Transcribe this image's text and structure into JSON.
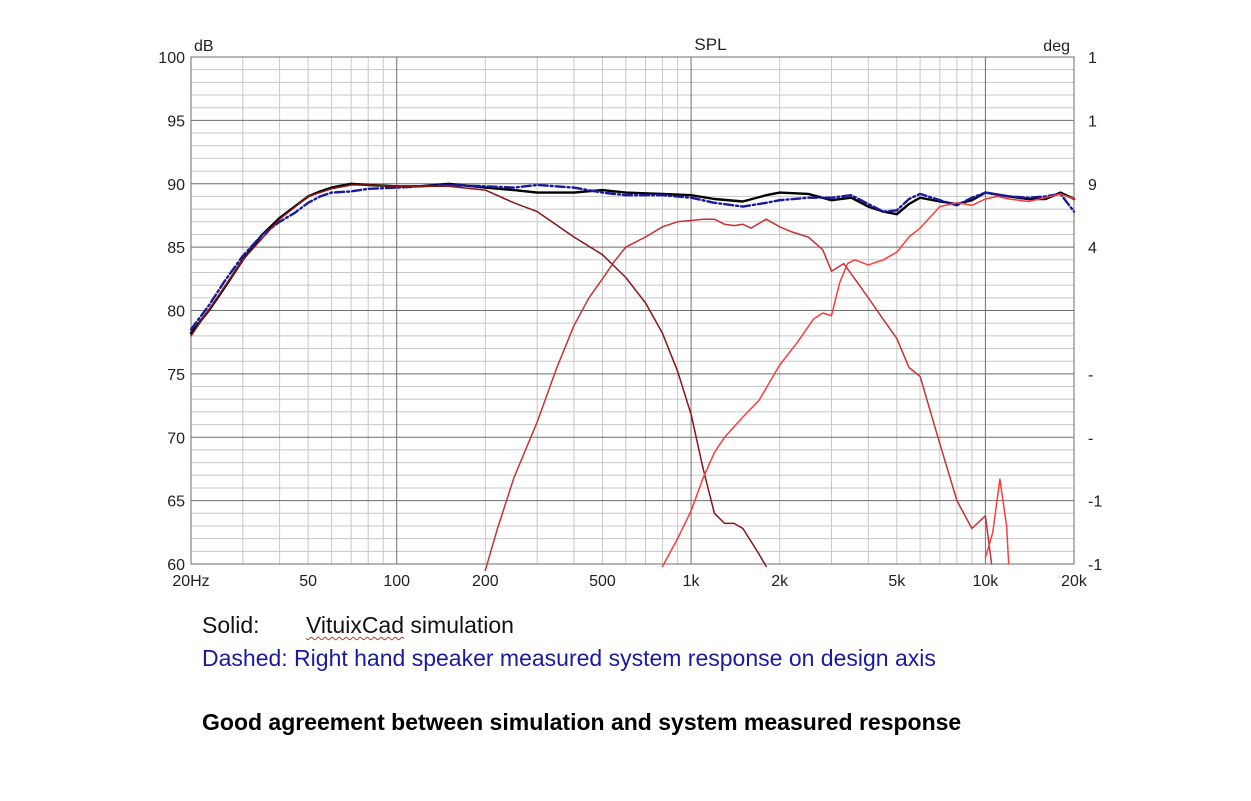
{
  "chart_data": {
    "type": "line",
    "title": "SPL",
    "ylabel_left": "dB",
    "ylabel_right": "deg",
    "x_scale": "log",
    "xlim": [
      20,
      20000
    ],
    "ylim": [
      60,
      100
    ],
    "grid": true,
    "x_ticks": [
      {
        "value": 20,
        "label": "20Hz"
      },
      {
        "value": 50,
        "label": "50"
      },
      {
        "value": 100,
        "label": "100"
      },
      {
        "value": 200,
        "label": "200"
      },
      {
        "value": 500,
        "label": "500"
      },
      {
        "value": 1000,
        "label": "1k"
      },
      {
        "value": 2000,
        "label": "2k"
      },
      {
        "value": 5000,
        "label": "5k"
      },
      {
        "value": 10000,
        "label": "10k"
      },
      {
        "value": 20000,
        "label": "20k"
      }
    ],
    "y_ticks": [
      100,
      95,
      90,
      85,
      80,
      75,
      70,
      65,
      60
    ],
    "right_tick_labels": [
      "1",
      "1",
      "9",
      "4",
      "",
      "-",
      "-",
      "-1",
      "-1"
    ],
    "series": [
      {
        "style": "solid",
        "color": "#000000",
        "width": 2.4,
        "x": [
          20,
          23,
          26,
          30,
          35,
          40,
          45,
          50,
          55,
          60,
          70,
          80,
          100,
          120,
          150,
          200,
          250,
          300,
          400,
          500,
          600,
          800,
          1000,
          1200,
          1500,
          1800,
          2000,
          2500,
          3000,
          3500,
          4000,
          4500,
          5000,
          5500,
          6000,
          7000,
          8000,
          9000,
          10000,
          12000,
          14000,
          16000,
          18000,
          20000
        ],
        "y": [
          78.2,
          80.0,
          81.8,
          84.0,
          86.0,
          87.3,
          88.2,
          89.0,
          89.4,
          89.7,
          90.0,
          89.9,
          89.8,
          89.8,
          90.0,
          89.7,
          89.5,
          89.3,
          89.3,
          89.5,
          89.3,
          89.2,
          89.1,
          88.8,
          88.6,
          89.1,
          89.3,
          89.2,
          88.7,
          88.9,
          88.2,
          87.8,
          87.6,
          88.4,
          88.9,
          88.6,
          88.4,
          88.7,
          89.3,
          89.0,
          88.8,
          88.8,
          89.3,
          88.8
        ]
      },
      {
        "style": "dashed",
        "color": "#1a1aa0",
        "width": 2.4,
        "x": [
          20,
          23,
          26,
          30,
          35,
          40,
          45,
          50,
          55,
          60,
          70,
          80,
          100,
          120,
          150,
          200,
          250,
          300,
          400,
          500,
          600,
          800,
          1000,
          1200,
          1500,
          1800,
          2000,
          2500,
          3000,
          3500,
          4000,
          4500,
          5000,
          5500,
          6000,
          7000,
          8000,
          9000,
          10000,
          12000,
          14000,
          16000,
          18000,
          20000
        ],
        "y": [
          78.5,
          80.4,
          82.3,
          84.3,
          86.0,
          87.0,
          87.7,
          88.5,
          89.0,
          89.3,
          89.4,
          89.6,
          89.7,
          89.8,
          89.9,
          89.8,
          89.7,
          89.9,
          89.7,
          89.3,
          89.1,
          89.1,
          88.9,
          88.5,
          88.2,
          88.5,
          88.7,
          88.9,
          88.9,
          89.1,
          88.4,
          87.8,
          87.9,
          88.8,
          89.2,
          88.7,
          88.3,
          88.9,
          89.3,
          89.0,
          88.9,
          89.0,
          89.2,
          87.8
        ]
      },
      {
        "style": "solid",
        "color": "#8b1515",
        "width": 1.5,
        "x": [
          20,
          30,
          40,
          50,
          60,
          70,
          80,
          100,
          150,
          200,
          250,
          300,
          400,
          500,
          600,
          700,
          800,
          900,
          1000,
          1100,
          1200,
          1300,
          1400,
          1500,
          1700,
          1800
        ],
        "y": [
          78.0,
          84.0,
          87.2,
          89.0,
          89.6,
          89.9,
          89.9,
          89.8,
          89.8,
          89.5,
          88.5,
          87.8,
          85.8,
          84.4,
          82.6,
          80.6,
          78.2,
          75.2,
          71.8,
          67.5,
          64.0,
          63.2,
          63.2,
          62.8,
          60.8,
          59.8
        ]
      },
      {
        "style": "solid",
        "color": "#c83232",
        "width": 1.5,
        "x": [
          200,
          220,
          250,
          300,
          350,
          400,
          450,
          500,
          550,
          600,
          700,
          800,
          900,
          1000,
          1100,
          1200,
          1300,
          1400,
          1500,
          1600,
          1800,
          2000,
          2200,
          2500,
          2800,
          3000,
          3300,
          3600,
          4000,
          4500,
          5000,
          5500,
          6000,
          7000,
          8000,
          9000,
          10000,
          10500
        ],
        "y": [
          59.5,
          62.8,
          66.8,
          71.2,
          75.5,
          78.8,
          81.0,
          82.5,
          83.9,
          85.0,
          85.8,
          86.6,
          87.0,
          87.1,
          87.2,
          87.2,
          86.8,
          86.7,
          86.8,
          86.5,
          87.2,
          86.6,
          86.2,
          85.8,
          84.8,
          83.1,
          83.7,
          82.5,
          81.0,
          79.3,
          77.8,
          75.5,
          74.8,
          69.5,
          65.0,
          62.8,
          63.8,
          60.0
        ]
      },
      {
        "style": "solid",
        "color": "#ff3b3b",
        "width": 1.5,
        "x": [
          800,
          900,
          1000,
          1100,
          1200,
          1300,
          1500,
          1700,
          2000,
          2300,
          2600,
          2800,
          3000,
          3200,
          3400,
          3600,
          4000,
          4500,
          5000,
          5500,
          6000,
          7000,
          8000,
          9000,
          10000,
          11000,
          12000,
          14000,
          16000,
          18000,
          20000
        ],
        "y": [
          59.8,
          62.0,
          64.2,
          66.8,
          68.8,
          70.0,
          71.6,
          72.9,
          75.7,
          77.5,
          79.3,
          79.8,
          79.6,
          82.2,
          83.7,
          84.0,
          83.6,
          84.0,
          84.6,
          85.8,
          86.5,
          88.2,
          88.5,
          88.3,
          88.8,
          89.0,
          88.8,
          88.6,
          88.9,
          89.2,
          88.8
        ]
      },
      {
        "style": "solid",
        "color": "#ff3b3b",
        "width": 1.5,
        "x": [
          10000,
          10600,
          11200,
          11800,
          12000
        ],
        "y": [
          60.5,
          62.5,
          66.7,
          63.0,
          60.0
        ]
      }
    ]
  },
  "captions": {
    "solid_key": "Solid:",
    "solid_link": "VituixCad",
    "solid_text": " simulation",
    "dashed_text": "Dashed: Right hand speaker measured system response on design axis",
    "conclusion": "Good agreement between simulation and system measured response"
  },
  "colors": {
    "grid_major": "#6e6e6e",
    "grid_minor": "#c8c8c8",
    "dashed_caption": "#1a1aa0"
  }
}
